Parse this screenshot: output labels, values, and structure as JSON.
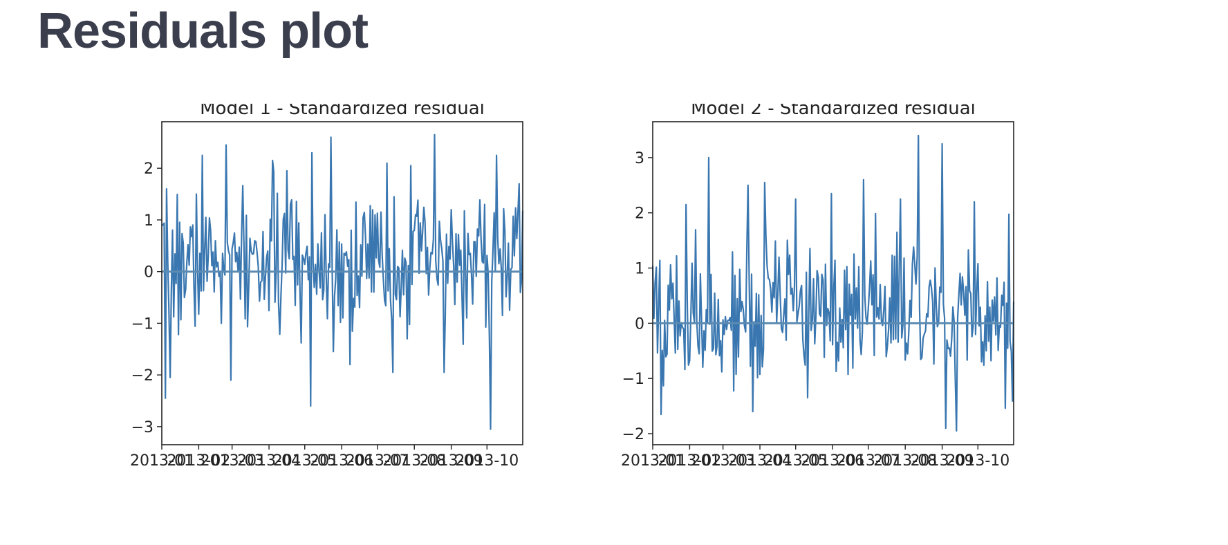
{
  "page": {
    "title": "Residuals plot"
  },
  "chart_data": [
    {
      "type": "line",
      "title": "Model 1 - Standardized residual",
      "xlabel": "",
      "ylabel": "",
      "ylim": [
        -3.35,
        2.9
      ],
      "yticks": [
        -3,
        -2,
        -1,
        0,
        1,
        2
      ],
      "ytick_labels": [
        "−3",
        "−2",
        "−1",
        "0",
        "1",
        "2"
      ],
      "xticks": [
        "2013-01",
        "2013-02",
        "2013-03",
        "2013-04",
        "2013-05",
        "2013-06",
        "2013-07",
        "2013-08",
        "2013-09",
        "2013-10"
      ],
      "x_start": "2013-01-01",
      "x_end": "2013-10-31",
      "n_points": 304,
      "reference_line": 0,
      "series_color": "#3a77b0",
      "reference_color": "#5b8bb2",
      "seed": 7,
      "spikes": [
        {
          "x": 5,
          "y": -2.45
        },
        {
          "x": 7,
          "y": 1.6
        },
        {
          "x": 14,
          "y": -2.05
        },
        {
          "x": 64,
          "y": 2.25
        },
        {
          "x": 102,
          "y": 2.45
        },
        {
          "x": 111,
          "y": -2.1
        },
        {
          "x": 177,
          "y": 2.15
        },
        {
          "x": 200,
          "y": 1.95
        },
        {
          "x": 237,
          "y": -2.6
        },
        {
          "x": 240,
          "y": 2.3
        },
        {
          "x": 269,
          "y": 2.6
        },
        {
          "x": 300,
          "y": -1.8
        },
        {
          "x": 360,
          "y": 2.1
        },
        {
          "x": 368,
          "y": -1.95
        },
        {
          "x": 398,
          "y": 2.05
        },
        {
          "x": 435,
          "y": 2.65
        },
        {
          "x": 451,
          "y": -1.95
        },
        {
          "x": 525,
          "y": -3.05
        },
        {
          "x": 534,
          "y": 2.25
        },
        {
          "x": 571,
          "y": 1.7
        }
      ]
    },
    {
      "type": "line",
      "title": "Model 2 - Standardized residual",
      "xlabel": "",
      "ylabel": "",
      "ylim": [
        -2.2,
        3.65
      ],
      "yticks": [
        -2,
        -1,
        0,
        1,
        2,
        3
      ],
      "ytick_labels": [
        "−2",
        "−1",
        "0",
        "1",
        "2",
        "3"
      ],
      "xticks": [
        "2013-01",
        "2013-02",
        "2013-03",
        "2013-04",
        "2013-05",
        "2013-06",
        "2013-07",
        "2013-08",
        "2013-09",
        "2013-10"
      ],
      "x_start": "2013-01-01",
      "x_end": "2013-10-31",
      "n_points": 304,
      "reference_line": 0,
      "series_color": "#3a77b0",
      "reference_color": "#5b8bb2",
      "seed": 19,
      "spikes": [
        {
          "x": 13,
          "y": -1.65
        },
        {
          "x": 53,
          "y": 2.15
        },
        {
          "x": 90,
          "y": 3.0
        },
        {
          "x": 152,
          "y": 2.5
        },
        {
          "x": 160,
          "y": -1.6
        },
        {
          "x": 179,
          "y": 2.55
        },
        {
          "x": 228,
          "y": 2.25
        },
        {
          "x": 248,
          "y": -1.35
        },
        {
          "x": 285,
          "y": 2.35
        },
        {
          "x": 337,
          "y": 2.6
        },
        {
          "x": 396,
          "y": 2.25
        },
        {
          "x": 423,
          "y": 3.4
        },
        {
          "x": 462,
          "y": 3.25
        },
        {
          "x": 467,
          "y": -1.9
        },
        {
          "x": 485,
          "y": -1.95
        },
        {
          "x": 514,
          "y": 2.2
        }
      ]
    }
  ]
}
